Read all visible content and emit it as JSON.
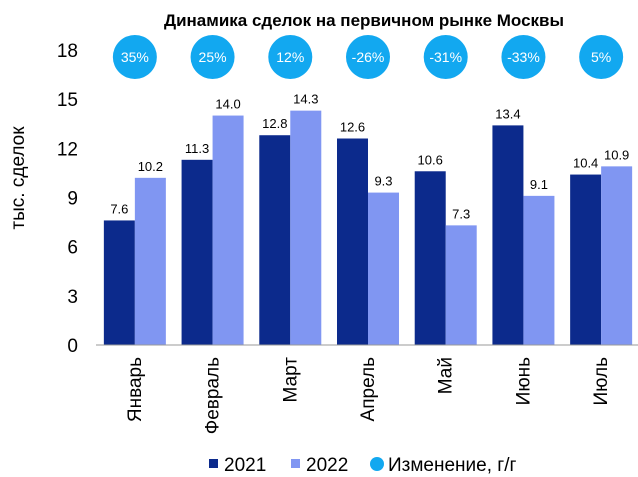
{
  "chart_data": {
    "type": "bar",
    "title": "Динамика сделок на первичном рынке Москвы",
    "ylabel": "тыс. сделок",
    "xlabel": "",
    "ylim": [
      0,
      18
    ],
    "yticks": [
      0,
      3,
      6,
      9,
      12,
      15,
      18
    ],
    "categories": [
      "Январь",
      "Февраль",
      "Март",
      "Апрель",
      "Май",
      "Июнь",
      "Июль"
    ],
    "series": [
      {
        "name": "2021",
        "color": "#0c2a8c",
        "values": [
          7.6,
          11.3,
          12.8,
          12.6,
          10.6,
          13.4,
          10.4
        ],
        "labels": [
          "7.6",
          "11.3",
          "12.8",
          "12.6",
          "10.6",
          "13.4",
          "10.4"
        ]
      },
      {
        "name": "2022",
        "color": "#8096f2",
        "values": [
          10.2,
          14.0,
          14.3,
          9.3,
          7.3,
          9.1,
          10.9
        ],
        "labels": [
          "10.2",
          "14.0",
          "14.3",
          "9.3",
          "7.3",
          "9.1",
          "10.9"
        ]
      }
    ],
    "change": {
      "name": "Изменение, г/г",
      "color": "#12a8f0",
      "labels": [
        "35%",
        "25%",
        "12%",
        "-26%",
        "-31%",
        "-33%",
        "5%"
      ]
    },
    "legend_position": "bottom",
    "grid": false
  }
}
